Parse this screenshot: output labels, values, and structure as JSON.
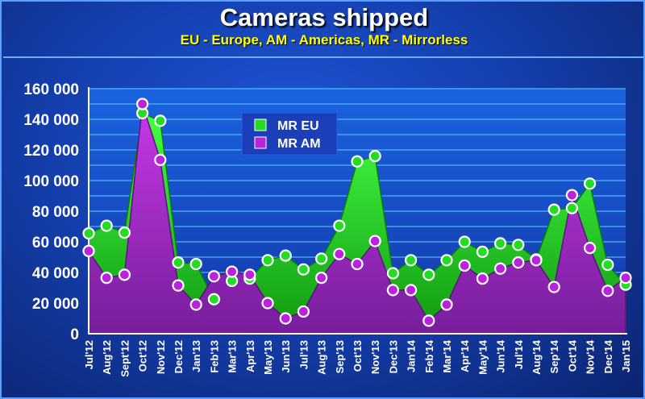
{
  "chart_data": {
    "type": "area",
    "title": "Cameras shipped",
    "subtitle": "EU - Europe, AM - Americas, MR - Mirrorless",
    "categories": [
      "Jul'12",
      "Aug'12",
      "Sept'12",
      "Oct'12",
      "Nov'12",
      "Dec'12",
      "Jan'13",
      "Feb'13",
      "Mar'13",
      "Apr'13",
      "May'13",
      "Jun'13",
      "Jul'13",
      "Aug'13",
      "Sep'13",
      "Oct'13",
      "Nov'13",
      "Dec'13",
      "Jan'14",
      "Feb'14",
      "Mar'14",
      "Apr'14",
      "May'14",
      "Jun'14",
      "Jul'14",
      "Aug'14",
      "Sep'14",
      "Oct'14",
      "Nov'14",
      "Dec'14",
      "Jan'15"
    ],
    "series": [
      {
        "name": "MR EU",
        "color": "#22dd22",
        "values": [
          65500,
          70500,
          66000,
          144000,
          139000,
          46500,
          45500,
          22500,
          34500,
          36000,
          48000,
          51000,
          42000,
          49000,
          70500,
          112500,
          116000,
          39500,
          48000,
          38500,
          48000,
          60000,
          53500,
          59000,
          58000,
          48500,
          81000,
          82000,
          98000,
          45000,
          32000
        ]
      },
      {
        "name": "MR AM",
        "color": "#bb22dd",
        "values": [
          54000,
          36500,
          38500,
          150000,
          113500,
          31500,
          19000,
          37500,
          40500,
          38500,
          20000,
          10000,
          14500,
          36500,
          52000,
          45500,
          60500,
          28500,
          28500,
          8500,
          19000,
          44500,
          36000,
          42500,
          46500,
          48000,
          30500,
          90500,
          56000,
          28000,
          36500
        ]
      }
    ],
    "ylim": [
      0,
      160000
    ],
    "yticks": [
      "0",
      "20 000",
      "40 000",
      "60 000",
      "80 000",
      "100 000",
      "120 000",
      "140 000",
      "160 000"
    ],
    "grid": true,
    "legend_position": "top-center"
  }
}
